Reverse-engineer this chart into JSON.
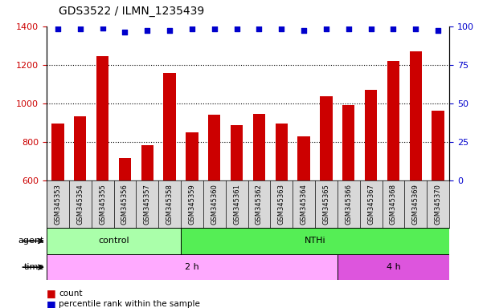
{
  "title": "GDS3522 / ILMN_1235439",
  "samples": [
    "GSM345353",
    "GSM345354",
    "GSM345355",
    "GSM345356",
    "GSM345357",
    "GSM345358",
    "GSM345359",
    "GSM345360",
    "GSM345361",
    "GSM345362",
    "GSM345363",
    "GSM345364",
    "GSM345365",
    "GSM345366",
    "GSM345367",
    "GSM345368",
    "GSM345369",
    "GSM345370"
  ],
  "counts": [
    895,
    930,
    1245,
    715,
    780,
    1155,
    848,
    942,
    885,
    943,
    893,
    828,
    1035,
    992,
    1068,
    1220,
    1268,
    960
  ],
  "percentile_ranks": [
    98,
    98,
    99,
    96,
    97,
    97,
    98,
    98,
    98,
    98,
    98,
    97,
    98,
    98,
    98,
    98,
    98,
    97
  ],
  "ylim_left": [
    600,
    1400
  ],
  "ylim_right": [
    0,
    100
  ],
  "yticks_left": [
    600,
    800,
    1000,
    1200,
    1400
  ],
  "yticks_right": [
    0,
    25,
    50,
    75,
    100
  ],
  "bar_color": "#cc0000",
  "dot_color": "#0000cc",
  "agent_control_color": "#aaffaa",
  "agent_nthi_color": "#55ee55",
  "time_2h_color": "#ffaaff",
  "time_4h_color": "#dd55dd",
  "agent_groups": [
    {
      "label": "control",
      "start": 0,
      "end": 6
    },
    {
      "label": "NTHi",
      "start": 6,
      "end": 18
    }
  ],
  "time_groups": [
    {
      "label": "2 h",
      "start": 0,
      "end": 13
    },
    {
      "label": "4 h",
      "start": 13,
      "end": 18
    }
  ],
  "agent_label": "agent",
  "time_label": "time",
  "legend_count_label": "count",
  "legend_percentile_label": "percentile rank within the sample",
  "bar_width": 0.55,
  "label_bg_color": "#d8d8d8",
  "fig_width": 6.11,
  "fig_height": 3.84,
  "dpi": 100
}
